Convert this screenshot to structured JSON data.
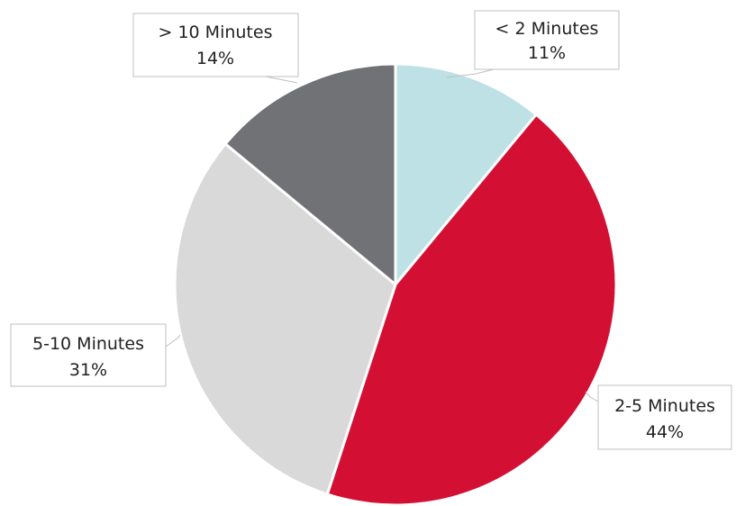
{
  "chart_data": {
    "type": "pie",
    "title": "",
    "slices": [
      {
        "label": "< 2 Minutes",
        "value": 11,
        "value_label": "11%",
        "color": "#bde1e4"
      },
      {
        "label": "2-5 Minutes",
        "value": 44,
        "value_label": "44%",
        "color": "#d31033"
      },
      {
        "label": "5-10 Minutes",
        "value": 31,
        "value_label": "31%",
        "color": "#d9d9d9"
      },
      {
        "label": "> 10 Minutes",
        "value": 14,
        "value_label": "14%",
        "color": "#717276"
      }
    ],
    "legend": "none",
    "data_labels": "callouts"
  }
}
